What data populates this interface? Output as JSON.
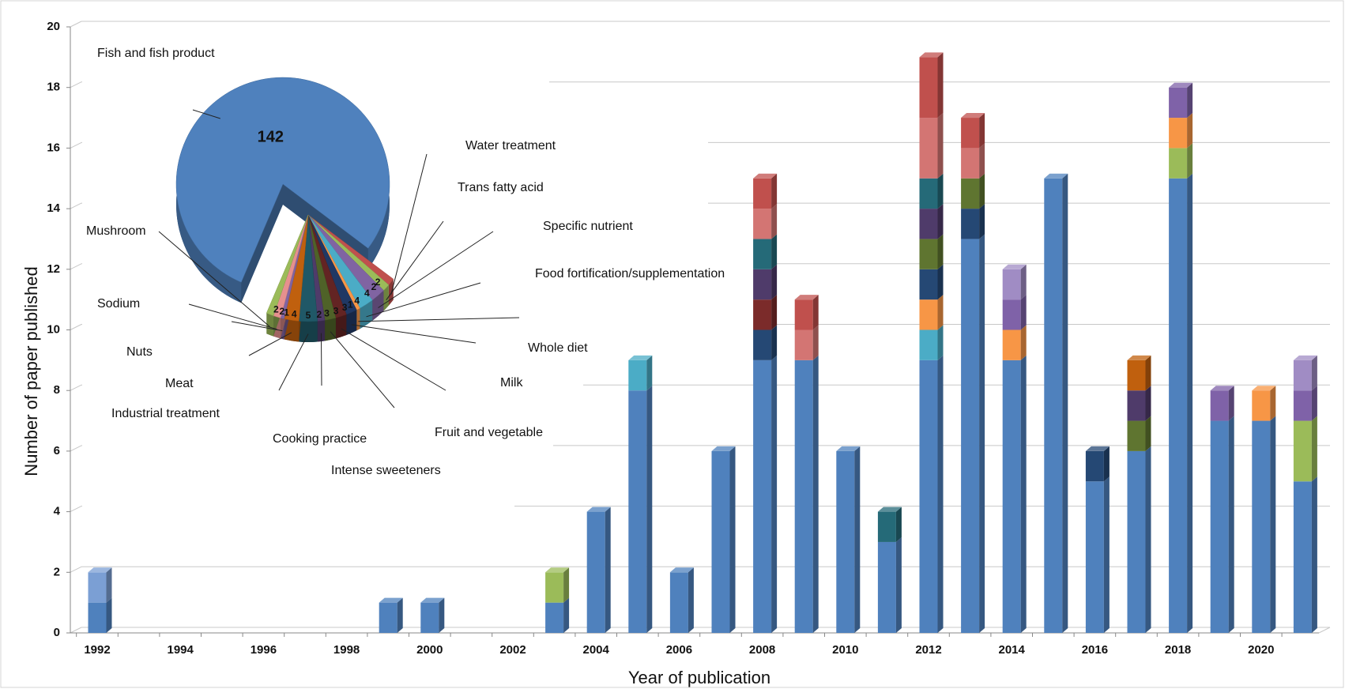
{
  "chart_data": [
    {
      "type": "bar",
      "stacked": true,
      "grid": true,
      "xlabel": "Year of publication",
      "ylabel": "Number of paper published",
      "categories": [
        "1992",
        null,
        "1994",
        null,
        "1996",
        null,
        "1998",
        null,
        "2000",
        null,
        "2002",
        null,
        "2004",
        null,
        "2006",
        null,
        "2008",
        null,
        "2010",
        null,
        "2012",
        null,
        "2014",
        null,
        "2016",
        null,
        "2018",
        null,
        "2020",
        null
      ],
      "ylim": [
        0,
        20
      ],
      "yticks": [
        0,
        2,
        4,
        6,
        8,
        10,
        12,
        14,
        16,
        18,
        20
      ],
      "series": [
        {
          "color": "#4f81bd",
          "values": [
            1,
            null,
            null,
            null,
            null,
            null,
            null,
            1,
            1,
            null,
            null,
            1,
            4,
            8,
            2,
            6,
            9,
            9,
            6,
            3,
            9,
            13,
            9,
            15,
            5,
            6,
            15,
            7,
            7,
            5
          ]
        },
        {
          "color": "#7b9fd4",
          "values": [
            1,
            null,
            null,
            null,
            null,
            null,
            null,
            null,
            null,
            null,
            null,
            null,
            null,
            null,
            null,
            null,
            null,
            null,
            null,
            null,
            null,
            null,
            null,
            null,
            null,
            null,
            null,
            null,
            null,
            null
          ]
        },
        {
          "color": "#9bbb59",
          "values": [
            null,
            null,
            null,
            null,
            null,
            null,
            null,
            null,
            null,
            null,
            null,
            1,
            null,
            null,
            null,
            null,
            null,
            null,
            null,
            null,
            null,
            null,
            null,
            null,
            null,
            null,
            1,
            null,
            null,
            2
          ]
        },
        {
          "color": "#4bacc6",
          "values": [
            null,
            null,
            null,
            null,
            null,
            null,
            null,
            null,
            null,
            null,
            null,
            null,
            null,
            1,
            null,
            null,
            null,
            null,
            null,
            null,
            1,
            null,
            null,
            null,
            null,
            null,
            null,
            null,
            null,
            null
          ]
        },
        {
          "color": "#f79646",
          "values": [
            null,
            null,
            null,
            null,
            null,
            null,
            null,
            null,
            null,
            null,
            null,
            null,
            null,
            null,
            null,
            null,
            null,
            null,
            null,
            null,
            1,
            null,
            1,
            null,
            null,
            null,
            1,
            null,
            1,
            null
          ]
        },
        {
          "color": "#254874",
          "values": [
            null,
            null,
            null,
            null,
            null,
            null,
            null,
            null,
            null,
            null,
            null,
            null,
            null,
            null,
            null,
            null,
            1,
            null,
            null,
            null,
            1,
            1,
            null,
            null,
            1,
            null,
            null,
            null,
            null,
            null
          ]
        },
        {
          "color": "#7b2b2a",
          "values": [
            null,
            null,
            null,
            null,
            null,
            null,
            null,
            null,
            null,
            null,
            null,
            null,
            null,
            null,
            null,
            null,
            1,
            null,
            null,
            null,
            null,
            null,
            null,
            null,
            null,
            null,
            null,
            null,
            null,
            null
          ]
        },
        {
          "color": "#5f7530",
          "values": [
            null,
            null,
            null,
            null,
            null,
            null,
            null,
            null,
            null,
            null,
            null,
            null,
            null,
            null,
            null,
            null,
            null,
            null,
            null,
            null,
            1,
            1,
            null,
            null,
            null,
            1,
            null,
            null,
            null,
            null
          ]
        },
        {
          "color": "#4f3b6a",
          "values": [
            null,
            null,
            null,
            null,
            null,
            null,
            null,
            null,
            null,
            null,
            null,
            null,
            null,
            null,
            null,
            null,
            1,
            null,
            null,
            null,
            1,
            null,
            null,
            null,
            null,
            1,
            null,
            null,
            null,
            null
          ]
        },
        {
          "color": "#256a78",
          "values": [
            null,
            null,
            null,
            null,
            null,
            null,
            null,
            null,
            null,
            null,
            null,
            null,
            null,
            null,
            null,
            null,
            1,
            null,
            null,
            1,
            1,
            null,
            null,
            null,
            null,
            null,
            null,
            null,
            null,
            null
          ]
        },
        {
          "color": "#7f62a8",
          "values": [
            null,
            null,
            null,
            null,
            null,
            null,
            null,
            null,
            null,
            null,
            null,
            null,
            null,
            null,
            null,
            null,
            null,
            null,
            null,
            null,
            null,
            null,
            1,
            null,
            null,
            null,
            1,
            1,
            null,
            1
          ]
        },
        {
          "color": "#a08cc4",
          "values": [
            null,
            null,
            null,
            null,
            null,
            null,
            null,
            null,
            null,
            null,
            null,
            null,
            null,
            null,
            null,
            null,
            null,
            null,
            null,
            null,
            null,
            null,
            1,
            null,
            null,
            null,
            null,
            null,
            null,
            1
          ]
        },
        {
          "color": "#c0600e",
          "values": [
            null,
            null,
            null,
            null,
            null,
            null,
            null,
            null,
            null,
            null,
            null,
            null,
            null,
            null,
            null,
            null,
            null,
            null,
            null,
            null,
            null,
            null,
            null,
            null,
            null,
            1,
            null,
            null,
            null,
            null
          ]
        },
        {
          "color": "#d37573",
          "values": [
            null,
            null,
            null,
            null,
            null,
            null,
            null,
            null,
            null,
            null,
            null,
            null,
            null,
            null,
            null,
            null,
            1,
            1,
            null,
            null,
            2,
            1,
            null,
            null,
            null,
            null,
            null,
            null,
            null,
            null
          ]
        },
        {
          "color": "#c0504d",
          "values": [
            null,
            null,
            null,
            null,
            null,
            null,
            null,
            null,
            null,
            null,
            null,
            null,
            null,
            null,
            null,
            null,
            1,
            1,
            null,
            null,
            2,
            1,
            null,
            null,
            null,
            null,
            null,
            null,
            null,
            null
          ]
        }
      ]
    },
    {
      "type": "pie",
      "categories": [
        "Fish and fish product",
        "Water treatment",
        "Trans fatty acid",
        "Specific nutrient",
        "Food fortification/supplementation",
        "Whole diet",
        "Milk",
        "Fruit and vegetable",
        "Intense sweeteners",
        "Cooking practice",
        "Industrial treatment",
        "Meat",
        "Nuts",
        "Sodium",
        "Mushroom"
      ],
      "values": [
        142,
        2,
        2,
        4,
        4,
        1,
        3,
        3,
        3,
        2,
        5,
        4,
        1,
        2,
        2
      ],
      "colors": [
        "#4f81bd",
        "#c0504d",
        "#9bbb59",
        "#8064a2",
        "#4bacc6",
        "#f79646",
        "#1f3864",
        "#632423",
        "#4f6228",
        "#4f3b6a",
        "#205867",
        "#c0600e",
        "#8064a2",
        "#e6908e",
        "#9bbb59"
      ]
    }
  ]
}
